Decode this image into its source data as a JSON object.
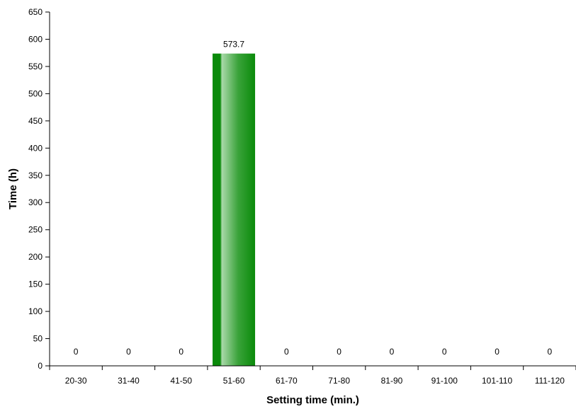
{
  "chart_data": {
    "type": "bar",
    "categories": [
      "20-30",
      "31-40",
      "41-50",
      "51-60",
      "61-70",
      "71-80",
      "81-90",
      "91-100",
      "101-110",
      "111-120"
    ],
    "values": [
      0,
      0,
      0,
      573.7,
      0,
      0,
      0,
      0,
      0,
      0
    ],
    "data_labels": [
      "0",
      "0",
      "0",
      "573.7",
      "0",
      "0",
      "0",
      "0",
      "0",
      "0"
    ],
    "xlabel": "Setting time (min.)",
    "ylabel": "Time (h)",
    "ylim": [
      0,
      650
    ],
    "yticks": [
      "0",
      "50",
      "100",
      "150",
      "200",
      "250",
      "300",
      "350",
      "400",
      "450",
      "500",
      "550",
      "600",
      "650"
    ],
    "grid": false,
    "legend": "none",
    "bar_color": "#0a8a0a",
    "bar_highlight": "#a8d8a8"
  }
}
